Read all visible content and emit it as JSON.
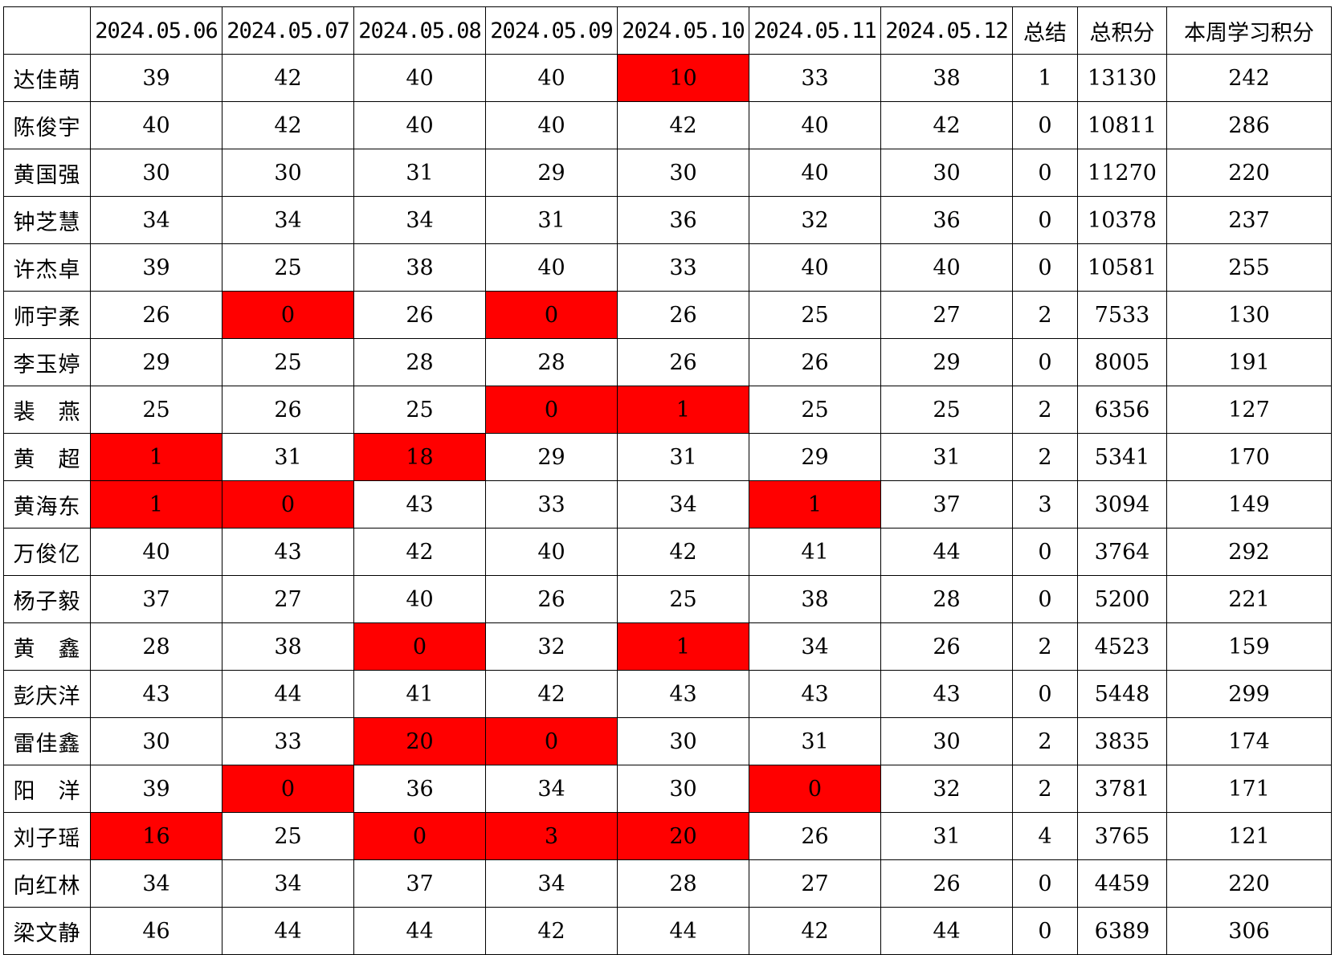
{
  "table": {
    "corner": "",
    "dates": [
      "2024.05.06",
      "2024.05.07",
      "2024.05.08",
      "2024.05.09",
      "2024.05.10",
      "2024.05.11",
      "2024.05.12"
    ],
    "summary_header": "总结",
    "total_header": "总积分",
    "weekly_header": "本周学习积分",
    "highlight_color": "#ff0000",
    "rows": [
      {
        "name": "达佳萌",
        "scores": [
          "39",
          "42",
          "40",
          "40",
          "10",
          "33",
          "38"
        ],
        "highlight": [
          false,
          false,
          false,
          false,
          true,
          false,
          false
        ],
        "summary": "1",
        "total": "13130",
        "weekly": "242"
      },
      {
        "name": "陈俊宇",
        "scores": [
          "40",
          "42",
          "40",
          "40",
          "42",
          "40",
          "42"
        ],
        "highlight": [
          false,
          false,
          false,
          false,
          false,
          false,
          false
        ],
        "summary": "0",
        "total": "10811",
        "weekly": "286"
      },
      {
        "name": "黄国强",
        "scores": [
          "30",
          "30",
          "31",
          "29",
          "30",
          "40",
          "30"
        ],
        "highlight": [
          false,
          false,
          false,
          false,
          false,
          false,
          false
        ],
        "summary": "0",
        "total": "11270",
        "weekly": "220"
      },
      {
        "name": "钟芝慧",
        "scores": [
          "34",
          "34",
          "34",
          "31",
          "36",
          "32",
          "36"
        ],
        "highlight": [
          false,
          false,
          false,
          false,
          false,
          false,
          false
        ],
        "summary": "0",
        "total": "10378",
        "weekly": "237"
      },
      {
        "name": "许杰卓",
        "scores": [
          "39",
          "25",
          "38",
          "40",
          "33",
          "40",
          "40"
        ],
        "highlight": [
          false,
          false,
          false,
          false,
          false,
          false,
          false
        ],
        "summary": "0",
        "total": "10581",
        "weekly": "255"
      },
      {
        "name": "师宇柔",
        "scores": [
          "26",
          "0",
          "26",
          "0",
          "26",
          "25",
          "27"
        ],
        "highlight": [
          false,
          true,
          false,
          true,
          false,
          false,
          false
        ],
        "summary": "2",
        "total": "7533",
        "weekly": "130"
      },
      {
        "name": "李玉婷",
        "scores": [
          "29",
          "25",
          "28",
          "28",
          "26",
          "26",
          "29"
        ],
        "highlight": [
          false,
          false,
          false,
          false,
          false,
          false,
          false
        ],
        "summary": "0",
        "total": "8005",
        "weekly": "191"
      },
      {
        "name": "裴　燕",
        "scores": [
          "25",
          "26",
          "25",
          "0",
          "1",
          "25",
          "25"
        ],
        "highlight": [
          false,
          false,
          false,
          true,
          true,
          false,
          false
        ],
        "summary": "2",
        "total": "6356",
        "weekly": "127"
      },
      {
        "name": "黄　超",
        "scores": [
          "1",
          "31",
          "18",
          "29",
          "31",
          "29",
          "31"
        ],
        "highlight": [
          true,
          false,
          true,
          false,
          false,
          false,
          false
        ],
        "summary": "2",
        "total": "5341",
        "weekly": "170"
      },
      {
        "name": "黄海东",
        "scores": [
          "1",
          "0",
          "43",
          "33",
          "34",
          "1",
          "37"
        ],
        "highlight": [
          true,
          true,
          false,
          false,
          false,
          true,
          false
        ],
        "summary": "3",
        "total": "3094",
        "weekly": "149"
      },
      {
        "name": "万俊亿",
        "scores": [
          "40",
          "43",
          "42",
          "40",
          "42",
          "41",
          "44"
        ],
        "highlight": [
          false,
          false,
          false,
          false,
          false,
          false,
          false
        ],
        "summary": "0",
        "total": "3764",
        "weekly": "292"
      },
      {
        "name": "杨子毅",
        "scores": [
          "37",
          "27",
          "40",
          "26",
          "25",
          "38",
          "28"
        ],
        "highlight": [
          false,
          false,
          false,
          false,
          false,
          false,
          false
        ],
        "summary": "0",
        "total": "5200",
        "weekly": "221"
      },
      {
        "name": "黄　鑫",
        "scores": [
          "28",
          "38",
          "0",
          "32",
          "1",
          "34",
          "26"
        ],
        "highlight": [
          false,
          false,
          true,
          false,
          true,
          false,
          false
        ],
        "summary": "2",
        "total": "4523",
        "weekly": "159"
      },
      {
        "name": "彭庆洋",
        "scores": [
          "43",
          "44",
          "41",
          "42",
          "43",
          "43",
          "43"
        ],
        "highlight": [
          false,
          false,
          false,
          false,
          false,
          false,
          false
        ],
        "summary": "0",
        "total": "5448",
        "weekly": "299"
      },
      {
        "name": "雷佳鑫",
        "scores": [
          "30",
          "33",
          "20",
          "0",
          "30",
          "31",
          "30"
        ],
        "highlight": [
          false,
          false,
          true,
          true,
          false,
          false,
          false
        ],
        "summary": "2",
        "total": "3835",
        "weekly": "174"
      },
      {
        "name": "阳　洋",
        "scores": [
          "39",
          "0",
          "36",
          "34",
          "30",
          "0",
          "32"
        ],
        "highlight": [
          false,
          true,
          false,
          false,
          false,
          true,
          false
        ],
        "summary": "2",
        "total": "3781",
        "weekly": "171"
      },
      {
        "name": "刘子瑶",
        "scores": [
          "16",
          "25",
          "0",
          "3",
          "20",
          "26",
          "31"
        ],
        "highlight": [
          true,
          false,
          true,
          true,
          true,
          false,
          false
        ],
        "summary": "4",
        "total": "3765",
        "weekly": "121"
      },
      {
        "name": "向红林",
        "scores": [
          "34",
          "34",
          "37",
          "34",
          "28",
          "27",
          "26"
        ],
        "highlight": [
          false,
          false,
          false,
          false,
          false,
          false,
          false
        ],
        "summary": "0",
        "total": "4459",
        "weekly": "220"
      },
      {
        "name": "梁文静",
        "scores": [
          "46",
          "44",
          "44",
          "42",
          "44",
          "42",
          "44"
        ],
        "highlight": [
          false,
          false,
          false,
          false,
          false,
          false,
          false
        ],
        "summary": "0",
        "total": "6389",
        "weekly": "306"
      }
    ]
  }
}
